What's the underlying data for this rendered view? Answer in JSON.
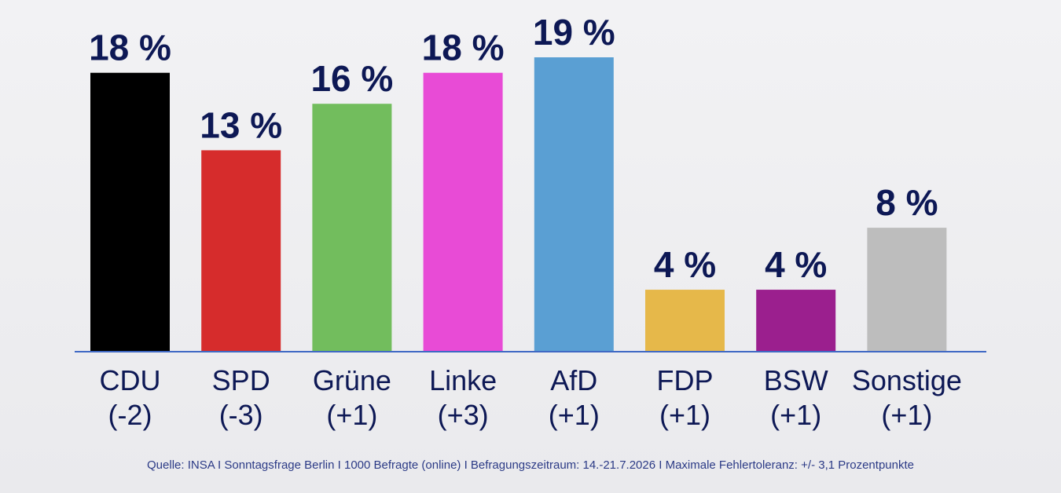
{
  "chart_data": {
    "type": "bar",
    "categories": [
      "CDU",
      "SPD",
      "Grüne",
      "Linke",
      "AfD",
      "FDP",
      "BSW",
      "Sonstige"
    ],
    "changes": [
      "(-2)",
      "(-3)",
      "(+1)",
      "(+3)",
      "(+1)",
      "(+1)",
      "(+1)",
      "(+1)"
    ],
    "values": [
      18,
      13,
      16,
      18,
      19,
      4,
      4,
      8
    ],
    "value_labels": [
      "18 %",
      "13 %",
      "16 %",
      "18 %",
      "19 %",
      "4 %",
      "4 %",
      "8 %"
    ],
    "colors": [
      "#000000",
      "#d62c2c",
      "#72bd5d",
      "#e84bd6",
      "#5a9fd3",
      "#e6b84a",
      "#9b1f8e",
      "#bdbdbd"
    ],
    "title": "",
    "xlabel": "",
    "ylabel": "",
    "ylim": [
      0,
      19
    ],
    "grid": false,
    "legend": "none",
    "baseline_color": "#3f68c4",
    "text_color": "#0d1855"
  },
  "footer": {
    "source": "Quelle: INSA I Sonntagsfrage Berlin I 1000 Befragte (online) I Befragungszeitraum: 14.-21.7.2026 I Maximale Fehlertoleranz: +/- 3,1 Prozentpunkte"
  }
}
